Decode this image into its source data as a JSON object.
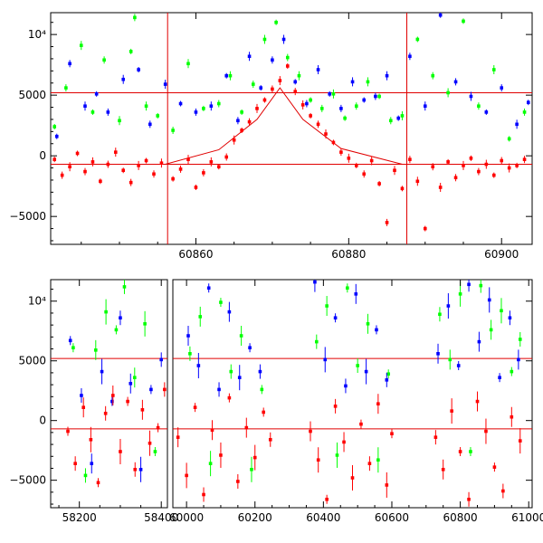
{
  "chart_data": [
    {
      "type": "scatter",
      "title": "",
      "xlabel": "",
      "ylabel": "",
      "xlim": [
        60841,
        60904
      ],
      "ylim": [
        -7300,
        11800
      ],
      "x_ticks": [
        {
          "value": 60860,
          "label": "60860"
        },
        {
          "value": 60880,
          "label": "60880"
        },
        {
          "value": 60900,
          "label": "60900"
        }
      ],
      "y_ticks": [
        {
          "value": -5000,
          "label": "−5000"
        },
        {
          "value": 0,
          "label": "0"
        },
        {
          "value": 5000,
          "label": "5000"
        },
        {
          "value": 10000,
          "label": "10⁴"
        }
      ],
      "hlines": [
        5200,
        -700
      ],
      "vlines": [
        60856.3,
        60887.6
      ],
      "model_curve": {
        "x": [
          60841,
          60856,
          60863,
          60868,
          60871,
          60874,
          60879,
          60887,
          60904
        ],
        "y": [
          -700,
          -700,
          500,
          3000,
          5600,
          3000,
          600,
          -700,
          -700
        ]
      },
      "series": [
        {
          "name": "green",
          "color": "#00ff00",
          "x": [
            60841.5,
            60843,
            60845,
            60846.5,
            60848,
            60850,
            60851.5,
            60852,
            60853.5,
            60855,
            60857,
            60859,
            60861,
            60863,
            60864.5,
            60866,
            60867.5,
            60869,
            60870.5,
            60872,
            60873.5,
            60875,
            60876.5,
            60878,
            60879.5,
            60881,
            60882.5,
            60884,
            60885.5,
            60887,
            60889,
            60891,
            60893,
            60895,
            60897,
            60899,
            60901,
            60903
          ],
          "y": [
            2400,
            5600,
            9100,
            3600,
            7900,
            2900,
            8600,
            11400,
            4100,
            3300,
            2100,
            7600,
            3900,
            4300,
            6600,
            3600,
            5900,
            9600,
            11000,
            8100,
            6600,
            4600,
            3900,
            5100,
            3100,
            4100,
            6100,
            4900,
            2900,
            3300,
            9600,
            6600,
            5200,
            11100,
            4100,
            7100,
            1400,
            3600
          ]
        },
        {
          "name": "blue",
          "color": "#0000ff",
          "x": [
            60841.8,
            60843.5,
            60845.5,
            60847,
            60848.5,
            60850.5,
            60852.5,
            60854,
            60856,
            60858,
            60860,
            60862,
            60864,
            60865.5,
            60867,
            60868.5,
            60870,
            60871.5,
            60873,
            60874.5,
            60876,
            60877.5,
            60879,
            60880.5,
            60882,
            60883.5,
            60885,
            60886.5,
            60888,
            60890,
            60892,
            60894,
            60896,
            60898,
            60900,
            60902,
            60903.5
          ],
          "y": [
            1600,
            7600,
            4100,
            5100,
            3600,
            6300,
            7100,
            2600,
            5900,
            4300,
            3600,
            4100,
            6600,
            2900,
            8200,
            5600,
            7900,
            9600,
            6100,
            4300,
            7100,
            5100,
            3900,
            6100,
            4600,
            4900,
            6600,
            3100,
            8200,
            4100,
            11600,
            6100,
            4900,
            3600,
            5600,
            2600,
            4400
          ]
        },
        {
          "name": "red",
          "color": "#ff0000",
          "x": [
            60841.5,
            60842.5,
            60843.5,
            60844.5,
            60845.5,
            60846.5,
            60847.5,
            60848.5,
            60849.5,
            60850.5,
            60851.5,
            60852.5,
            60853.5,
            60854.5,
            60855.5,
            60857,
            60858,
            60859,
            60860,
            60861,
            60862,
            60863,
            60864,
            60865,
            60866,
            60867,
            60868,
            60869,
            60870,
            60871,
            60872,
            60873,
            60874,
            60875,
            60876,
            60877,
            60878,
            60879,
            60880,
            60881,
            60882,
            60883,
            60884,
            60885,
            60886,
            60887,
            60888,
            60889,
            60890,
            60891,
            60892,
            60893,
            60894,
            60895,
            60896,
            60897,
            60898,
            60899,
            60900,
            60901,
            60902,
            60903
          ],
          "y": [
            -300,
            -1600,
            -900,
            200,
            -1300,
            -500,
            -2100,
            -700,
            300,
            -1200,
            -2200,
            -800,
            -400,
            -1500,
            -600,
            -1900,
            -1100,
            -300,
            -2600,
            -1400,
            -500,
            -900,
            -100,
            1300,
            2100,
            2800,
            3900,
            4600,
            5500,
            6200,
            7400,
            5300,
            4200,
            3300,
            2600,
            1800,
            1100,
            300,
            -200,
            -800,
            -1500,
            -400,
            -2300,
            -5500,
            -1200,
            -2700,
            -300,
            -2100,
            -6000,
            -900,
            -2600,
            -500,
            -1800,
            -800,
            -200,
            -1300,
            -700,
            -1600,
            -400,
            -1000,
            -800,
            -300
          ]
        }
      ]
    },
    {
      "type": "scatter",
      "title": "",
      "xlabel": "",
      "ylabel": "",
      "xlim": [
        58130,
        61010
      ],
      "ylim": [
        -7300,
        11800
      ],
      "segments": [
        {
          "range": [
            58130,
            58415
          ],
          "ticks": [
            {
              "value": 58200,
              "label": "58200"
            },
            {
              "value": 58400,
              "label": "58400"
            }
          ]
        },
        {
          "range": [
            59960,
            61010
          ],
          "ticks": [
            {
              "value": 60000,
              "label": "60000"
            },
            {
              "value": 60200,
              "label": "60200"
            },
            {
              "value": 60400,
              "label": "60400"
            },
            {
              "value": 60600,
              "label": "60600"
            },
            {
              "value": 60800,
              "label": "60800"
            },
            {
              "value": 61000,
              "label": "61000"
            }
          ]
        }
      ],
      "y_ticks": [
        {
          "value": -5000,
          "label": "−5000"
        },
        {
          "value": 0,
          "label": "0"
        },
        {
          "value": 5000,
          "label": "5000"
        },
        {
          "value": 10000,
          "label": "10⁴"
        }
      ],
      "hlines": [
        5200,
        -700
      ],
      "series": [
        {
          "name": "green",
          "color": "#00ff00",
          "x": [
            58185,
            58215,
            58240,
            58265,
            58290,
            58310,
            58335,
            58360,
            58385,
            60010,
            60040,
            60070,
            60100,
            60130,
            60160,
            60190,
            60220,
            60380,
            60410,
            60440,
            60470,
            60500,
            60530,
            60560,
            60590,
            60740,
            60770,
            60800,
            60830,
            60860,
            60890,
            60920,
            60950,
            60975
          ],
          "y": [
            6100,
            -4600,
            5900,
            9100,
            7600,
            11200,
            3600,
            8100,
            -2600,
            5600,
            8700,
            -3600,
            9900,
            4100,
            7100,
            -4100,
            2600,
            6600,
            9600,
            -2900,
            11100,
            4600,
            8100,
            -3300,
            3900,
            8900,
            5100,
            10600,
            -2600,
            11300,
            7600,
            9200,
            4100,
            6800
          ]
        },
        {
          "name": "blue",
          "color": "#0000ff",
          "x": [
            58178,
            58205,
            58230,
            58255,
            58280,
            58300,
            58325,
            58350,
            58375,
            58400,
            60005,
            60035,
            60065,
            60095,
            60125,
            60155,
            60185,
            60215,
            60375,
            60405,
            60435,
            60465,
            60495,
            60525,
            60555,
            60585,
            60735,
            60765,
            60795,
            60825,
            60855,
            60885,
            60915,
            60945,
            60970
          ],
          "y": [
            6700,
            2100,
            -3600,
            4100,
            1600,
            8600,
            3100,
            -4100,
            2600,
            5100,
            7100,
            4600,
            11100,
            2600,
            9100,
            3600,
            6100,
            4100,
            11600,
            5100,
            8600,
            2900,
            10600,
            4100,
            7600,
            3400,
            5600,
            9600,
            4600,
            11400,
            6600,
            10100,
            3600,
            8600,
            5100
          ]
        },
        {
          "name": "red",
          "color": "#ff0000",
          "x": [
            58172,
            58190,
            58210,
            58228,
            58246,
            58264,
            58282,
            58300,
            58318,
            58336,
            58354,
            58372,
            58392,
            58408,
            59975,
            60000,
            60025,
            60050,
            60075,
            60100,
            60125,
            60150,
            60175,
            60200,
            60225,
            60245,
            60362,
            60385,
            60410,
            60435,
            60460,
            60485,
            60510,
            60535,
            60560,
            60585,
            60600,
            60728,
            60750,
            60775,
            60800,
            60825,
            60850,
            60875,
            60900,
            60925,
            60950,
            60975
          ],
          "y": [
            -900,
            -3600,
            1100,
            -1600,
            -5200,
            600,
            2100,
            -2600,
            1600,
            -4100,
            900,
            -1900,
            -600,
            2600,
            -1400,
            -4600,
            1100,
            -6200,
            -800,
            -2900,
            1900,
            -5100,
            -600,
            -3100,
            700,
            -1600,
            -900,
            -3300,
            -6600,
            1200,
            -1800,
            -4800,
            -300,
            -3600,
            1400,
            -5400,
            -1100,
            -1400,
            -4100,
            800,
            -2600,
            -6600,
            1600,
            -900,
            -3900,
            -5900,
            300,
            -1700
          ]
        }
      ]
    }
  ]
}
